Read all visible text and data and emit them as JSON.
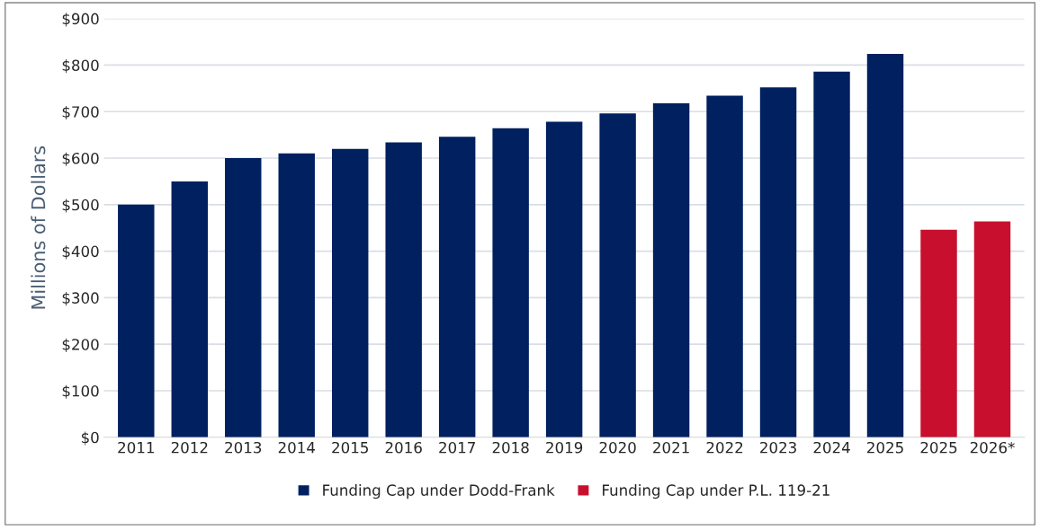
{
  "chart_data": {
    "type": "bar",
    "ylabel": "Millions of Dollars",
    "categories": [
      "2011",
      "2012",
      "2013",
      "2014",
      "2015",
      "2016",
      "2017",
      "2018",
      "2019",
      "2020",
      "2021",
      "2022",
      "2023",
      "2024",
      "2025",
      "2025",
      "2026*"
    ],
    "series": [
      {
        "name": "Funding Cap under Dodd-Frank",
        "color": "#002060",
        "values": [
          500,
          550,
          600,
          610,
          620,
          634,
          646,
          664,
          678,
          696,
          718,
          734,
          752,
          786,
          824,
          null,
          null
        ]
      },
      {
        "name": "Funding Cap under P.L. 119-21",
        "color": "#c8102e",
        "values": [
          null,
          null,
          null,
          null,
          null,
          null,
          null,
          null,
          null,
          null,
          null,
          null,
          null,
          null,
          null,
          446,
          464
        ]
      }
    ],
    "ylim": [
      0,
      900
    ],
    "yticks": [
      {
        "value": 0,
        "label": "$0"
      },
      {
        "value": 100,
        "label": "$100"
      },
      {
        "value": 200,
        "label": "$200"
      },
      {
        "value": 300,
        "label": "$300"
      },
      {
        "value": 400,
        "label": "$400"
      },
      {
        "value": 500,
        "label": "$500"
      },
      {
        "value": 600,
        "label": "$600"
      },
      {
        "value": 700,
        "label": "$700"
      },
      {
        "value": 800,
        "label": "$800"
      },
      {
        "value": 900,
        "label": "$900"
      }
    ],
    "grid": "y",
    "legend": "bottom"
  }
}
